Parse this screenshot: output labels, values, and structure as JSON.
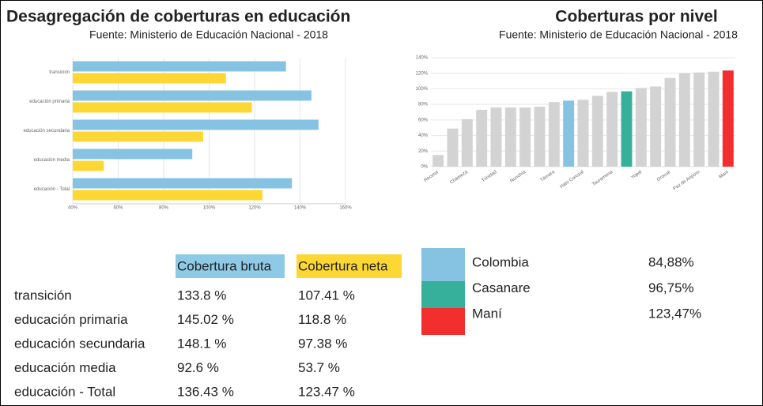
{
  "chart_data": [
    {
      "type": "hbar",
      "title": "Desagregación de coberturas en educación",
      "subtitle": "Fuente: Ministerio de Educación Nacional - 2018",
      "categories": [
        "transición",
        "educación primaria",
        "educación secundaria",
        "educación media",
        "educación - Total"
      ],
      "series": [
        {
          "name": "Cobertura bruta",
          "color": "#86c3e3",
          "values": [
            133.8,
            145.02,
            148.1,
            92.6,
            136.43
          ]
        },
        {
          "name": "Cobertura neta",
          "color": "#fdd835",
          "values": [
            107.41,
            118.8,
            97.38,
            53.7,
            123.47
          ]
        }
      ],
      "xlim": [
        40,
        160
      ],
      "xticks": [
        {
          "value": 40,
          "label": "40%"
        },
        {
          "value": 60,
          "label": "60%"
        },
        {
          "value": 80,
          "label": "80%"
        },
        {
          "value": 100,
          "label": "100%"
        },
        {
          "value": 120,
          "label": "120%"
        },
        {
          "value": 140,
          "label": "140%"
        },
        {
          "value": 160,
          "label": "160%"
        }
      ],
      "grid": true
    },
    {
      "type": "bar",
      "title": "Coberturas por nivel",
      "subtitle": "Fuente: Ministerio de Educación Nacional - 2018",
      "categories": [
        "Recetor",
        null,
        "Chámeza",
        null,
        "Trinidad",
        null,
        "Nunchía",
        null,
        "Támara",
        null,
        "Hato Corozal",
        null,
        "Tauramena",
        null,
        "Yopal",
        null,
        "Orocué",
        null,
        "Paz de Ariporo",
        null,
        "Maní"
      ],
      "values": [
        15,
        49,
        61,
        73,
        76,
        76,
        76,
        77,
        83,
        84.88,
        86,
        91,
        96,
        96.75,
        101,
        103,
        114,
        120,
        121,
        122,
        123.47
      ],
      "colors": [
        "#d3d3d3",
        "#d3d3d3",
        "#d3d3d3",
        "#d3d3d3",
        "#d3d3d3",
        "#d3d3d3",
        "#d3d3d3",
        "#d3d3d3",
        "#d3d3d3",
        "#86c3e3",
        "#d3d3d3",
        "#d3d3d3",
        "#d3d3d3",
        "#36b09a",
        "#d3d3d3",
        "#d3d3d3",
        "#d3d3d3",
        "#d3d3d3",
        "#d3d3d3",
        "#d3d3d3",
        "#f22e2e"
      ],
      "ylim": [
        0,
        140
      ],
      "yticks": [
        {
          "value": 0,
          "label": "0%"
        },
        {
          "value": 20,
          "label": "20%"
        },
        {
          "value": 40,
          "label": "40%"
        },
        {
          "value": 60,
          "label": "60%"
        },
        {
          "value": 80,
          "label": "80%"
        },
        {
          "value": 100,
          "label": "100%"
        },
        {
          "value": 120,
          "label": "120%"
        },
        {
          "value": 140,
          "label": "140%"
        }
      ],
      "grid": true
    }
  ],
  "table": {
    "headers": [
      "Cobertura bruta",
      "Cobertura neta"
    ],
    "header_colors": [
      "#8ecae6",
      "#fdd835"
    ],
    "rows": [
      [
        "transición",
        "133.8 %",
        "107.41 %"
      ],
      [
        "educación primaria",
        "145.02 %",
        "118.8 %"
      ],
      [
        "educación secundaria",
        "148.1 %",
        "97.38 %"
      ],
      [
        "educación media",
        "92.6 %",
        "53.7 %"
      ],
      [
        "educación - Total",
        "136.43 %",
        "123.47 %"
      ]
    ]
  },
  "legend": [
    {
      "color": "#86c3e3",
      "name": "Colombia",
      "value": "84,88%"
    },
    {
      "color": "#36b09a",
      "name": "Casanare",
      "value": "96,75%"
    },
    {
      "color": "#f22e2e",
      "name": "Maní",
      "value": "123,47%"
    }
  ]
}
